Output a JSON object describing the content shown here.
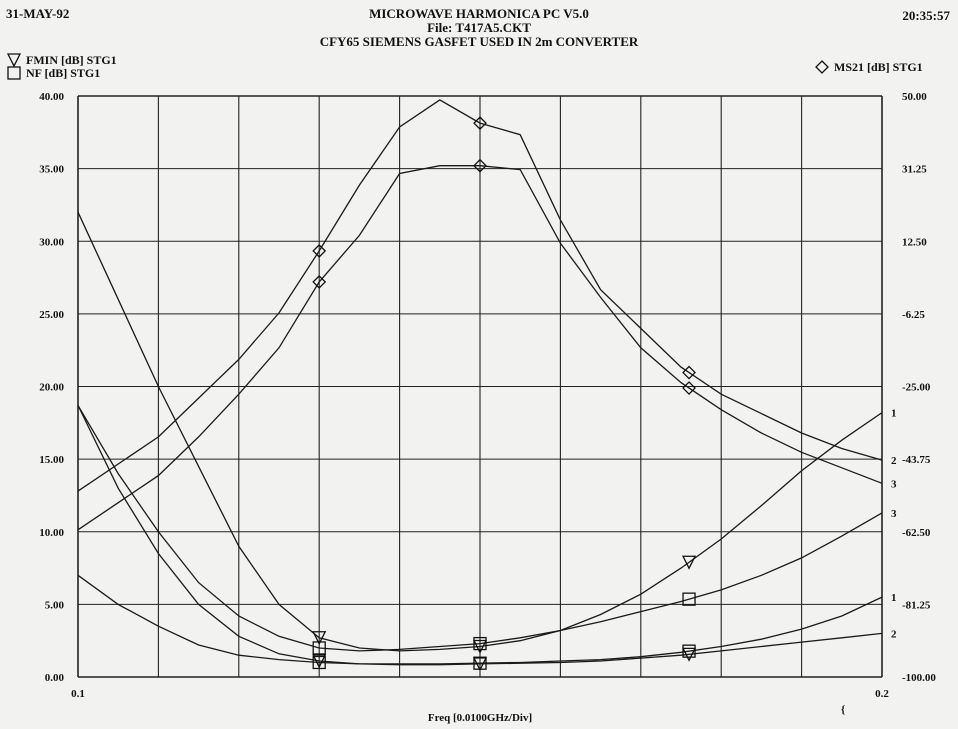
{
  "header": {
    "date": "31-MAY-92",
    "time": "20:35:57",
    "title_line1": "MICROWAVE HARMONICA PC V5.0",
    "title_line2": "File: T417A5.CKT",
    "title_line3": "CFY65 SIEMENS GASFET USED IN 2m CONVERTER"
  },
  "legend": {
    "left": [
      {
        "symbol": "triangle",
        "label": "FMIN [dB] STG1"
      },
      {
        "symbol": "square",
        "label": "NF [dB] STG1"
      }
    ],
    "right": [
      {
        "symbol": "diamond",
        "label": "MS21 [dB] STG1"
      }
    ]
  },
  "chart_data": {
    "type": "line",
    "title": "MICROWAVE HARMONICA PC V5.0",
    "xlabel": "Freq [0.0100GHz/Div]",
    "x_tick_labels": [
      "0.1",
      "0.2"
    ],
    "xlim": [
      0.1,
      0.2
    ],
    "y_left_ticks": [
      "0.00",
      "5.00",
      "10.00",
      "15.00",
      "20.00",
      "25.00",
      "30.00",
      "35.00",
      "40.00"
    ],
    "y_left_lim": [
      0,
      40
    ],
    "y_right_ticks": [
      "-100.00",
      "-81.25",
      "-62.50",
      "-43.75",
      "-25.00",
      "-6.25",
      "12.50",
      "31.25",
      "50.00"
    ],
    "y_right_lim": [
      -100,
      50
    ],
    "grid": true,
    "end_labels": [
      "1",
      "2",
      "3",
      "1",
      "2",
      "3",
      "1",
      "2"
    ],
    "stray_mark": "{",
    "x": [
      0.1,
      0.105,
      0.11,
      0.115,
      0.12,
      0.125,
      0.13,
      0.135,
      0.14,
      0.145,
      0.15,
      0.155,
      0.16,
      0.165,
      0.17,
      0.175,
      0.18,
      0.185,
      0.19,
      0.195,
      0.2
    ],
    "series": [
      {
        "name": "FMIN [dB] STG1",
        "axis": "left",
        "marker": "triangle",
        "marker_x": [
          0.13,
          0.15,
          0.176
        ],
        "values": [
          32.0,
          26.0,
          20.0,
          14.5,
          9.0,
          5.0,
          2.7,
          2.0,
          1.8,
          1.9,
          2.1,
          2.5,
          3.2,
          4.3,
          5.7,
          7.5,
          9.5,
          11.8,
          14.2,
          16.3,
          18.2
        ]
      },
      {
        "name": "FMIN [dB] STG1",
        "axis": "left",
        "marker": "triangle",
        "marker_x": [
          0.13,
          0.15,
          0.176
        ],
        "values": [
          18.7,
          13.0,
          8.5,
          5.0,
          2.8,
          1.6,
          1.1,
          0.9,
          0.85,
          0.85,
          0.9,
          0.95,
          1.0,
          1.1,
          1.3,
          1.5,
          1.8,
          2.1,
          2.4,
          2.7,
          3.0
        ]
      },
      {
        "name": "NF [dB] STG1",
        "axis": "left",
        "marker": "square",
        "marker_x": [
          0.13,
          0.15,
          0.176
        ],
        "values": [
          18.7,
          14.0,
          10.0,
          6.5,
          4.2,
          2.8,
          2.0,
          1.8,
          1.9,
          2.1,
          2.3,
          2.7,
          3.2,
          3.8,
          4.5,
          5.2,
          6.0,
          7.0,
          8.2,
          9.7,
          11.3
        ]
      },
      {
        "name": "NF [dB] STG1",
        "axis": "left",
        "marker": "square",
        "marker_x": [
          0.13,
          0.15,
          0.176
        ],
        "values": [
          7.0,
          5.0,
          3.5,
          2.2,
          1.5,
          1.2,
          1.0,
          0.9,
          0.9,
          0.9,
          0.95,
          1.0,
          1.1,
          1.2,
          1.4,
          1.7,
          2.1,
          2.6,
          3.3,
          4.2,
          5.5
        ]
      },
      {
        "name": "MS21 [dB] STG1",
        "axis": "right",
        "marker": "diamond",
        "marker_x": [
          0.13,
          0.15,
          0.176
        ],
        "values": [
          -52.0,
          -45.0,
          -38.0,
          -28.0,
          -18.0,
          -6.0,
          10.0,
          27.0,
          42.0,
          49.0,
          43.0,
          40.0,
          18.0,
          0.0,
          -10.0,
          -20.0,
          -27.0,
          -32.0,
          -37.0,
          -41.0,
          -44.0
        ]
      },
      {
        "name": "MS21 [dB] STG1",
        "axis": "right",
        "marker": "diamond",
        "marker_x": [
          0.13,
          0.15,
          0.176
        ],
        "values": [
          -62.0,
          -55.0,
          -48.0,
          -38.0,
          -27.0,
          -15.0,
          2.0,
          14.0,
          30.0,
          32.0,
          32.0,
          31.0,
          12.0,
          -2.0,
          -15.0,
          -24.0,
          -31.0,
          -37.0,
          -42.0,
          -46.0,
          -50.0
        ]
      }
    ]
  }
}
